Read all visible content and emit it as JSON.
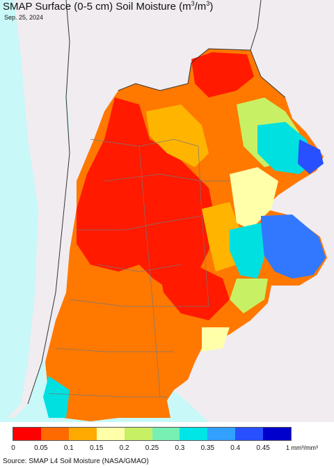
{
  "title_text": "SMAP Surface (0-5 cm) Soil Moisture (m",
  "title_sup1": "3",
  "title_mid": "/m",
  "title_sup2": "3",
  "title_end": ")",
  "date": "Sep. 25, 2024",
  "source": "Source: SMAP L4 Soil Moisture (NASA/GMAO)",
  "legend": {
    "ticks": [
      "0",
      "0.05",
      "0.1",
      "0.15",
      "0.2",
      "0.25",
      "0.3",
      "0.35",
      "0.4",
      "0.45"
    ],
    "unit": "1 mm³/mm³",
    "colors": [
      "#ff0000",
      "#ff6a00",
      "#ffaa00",
      "#ffffaa",
      "#c8f064",
      "#78f0b4",
      "#00e6e6",
      "#32a0ff",
      "#2850ff",
      "#0000cc"
    ]
  },
  "map_colors": {
    "ocean": "#c8f8f8",
    "neighbor_land": "#f0ecf0",
    "very_dry": "#ff1a00",
    "dry": "#ff7800",
    "moderate": "#ffb400",
    "light": "#ffffaa",
    "green": "#c8f064",
    "cyan": "#00e0e0",
    "blue": "#3278ff"
  }
}
